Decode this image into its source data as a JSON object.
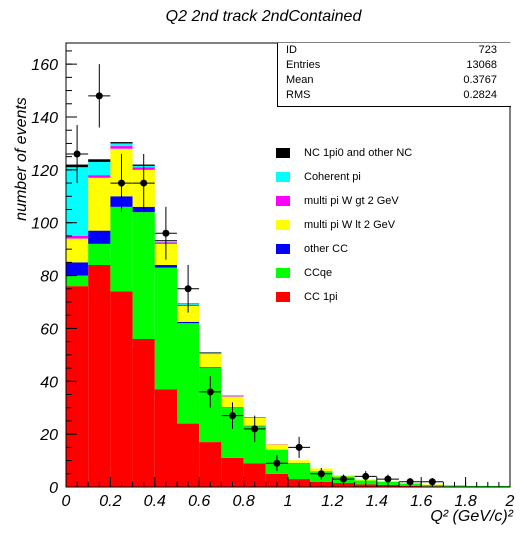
{
  "title": "Q2 2nd track 2ndContained",
  "ylabel": "number of events",
  "xlabel": "Q² (GeV/c)²",
  "stats": [
    {
      "label": "ID",
      "value": "723"
    },
    {
      "label": "Entries",
      "value": "13068"
    },
    {
      "label": "Mean",
      "value": "0.3767"
    },
    {
      "label": "RMS",
      "value": "0.2824"
    }
  ],
  "legend": [
    {
      "label": "NC 1pi0 and other NC",
      "color": "#000000"
    },
    {
      "label": "Coherent pi",
      "color": "#00ffff"
    },
    {
      "label": "multi pi W gt 2 GeV",
      "color": "#ff00ff"
    },
    {
      "label": "multi pi W lt 2 GeV",
      "color": "#ffff00"
    },
    {
      "label": "other CC",
      "color": "#0000ff"
    },
    {
      "label": "CCqe",
      "color": "#00ff00"
    },
    {
      "label": "CC 1pi",
      "color": "#ff0000"
    }
  ],
  "chart_data": {
    "type": "bar",
    "stacked": true,
    "bin_edges": [
      0,
      0.1,
      0.2,
      0.3,
      0.4,
      0.5,
      0.6,
      0.7,
      0.8,
      0.9,
      1.0,
      1.1,
      1.2,
      1.3,
      1.4,
      1.5,
      1.6,
      1.7,
      1.8,
      1.9,
      2.0
    ],
    "xlim": [
      0,
      2
    ],
    "ylim": [
      0,
      168
    ],
    "xticks": [
      "0",
      "0.2",
      "0.4",
      "0.6",
      "0.8",
      "1",
      "1.2",
      "1.4",
      "1.6",
      "1.8",
      "2"
    ],
    "yticks": [
      "0",
      "20",
      "40",
      "60",
      "80",
      "100",
      "120",
      "140",
      "160"
    ],
    "series": [
      {
        "name": "CC 1pi",
        "color": "#ff0000",
        "values": [
          76,
          84,
          74,
          56,
          37,
          24,
          17,
          11,
          9,
          5,
          3,
          2,
          1.5,
          1,
          0.8,
          0.5,
          0.3,
          0.2,
          0.1,
          0.1
        ]
      },
      {
        "name": "CCqe",
        "color": "#00ff00",
        "values": [
          4,
          8,
          32,
          48,
          46,
          38,
          28,
          19,
          14,
          9,
          6,
          4,
          2.5,
          1.5,
          1.2,
          0.8,
          0.5,
          0.4,
          0.3,
          0.3
        ]
      },
      {
        "name": "other CC",
        "color": "#0000ff",
        "values": [
          5,
          5,
          4,
          2,
          1,
          0.5,
          0.3,
          0.2,
          0.2,
          0.1,
          0.1,
          0,
          0,
          0,
          0,
          0,
          0,
          0,
          0,
          0
        ]
      },
      {
        "name": "multi pi W lt 2 GeV",
        "color": "#ffff00",
        "values": [
          9,
          20,
          18,
          14,
          8,
          6,
          5,
          4,
          3,
          2,
          1,
          1,
          0.5,
          0.4,
          0.3,
          0.2,
          0.2,
          0.1,
          0.1,
          0.1
        ]
      },
      {
        "name": "multi pi W gt 2 GeV",
        "color": "#ff00ff",
        "values": [
          1,
          1,
          1,
          1,
          0.6,
          0.4,
          0.3,
          0.2,
          0.1,
          0.1,
          0,
          0,
          0,
          0,
          0,
          0,
          0,
          0,
          0,
          0
        ]
      },
      {
        "name": "Coherent pi",
        "color": "#00ffff",
        "values": [
          26,
          5,
          1,
          0.5,
          0.5,
          0.3,
          0.2,
          0.1,
          0,
          0,
          0,
          0,
          0,
          0,
          0,
          0,
          0,
          0,
          0,
          0
        ]
      },
      {
        "name": "NC 1pi0 and other NC",
        "color": "#000000",
        "values": [
          1,
          1,
          0.5,
          0.5,
          0.3,
          0.2,
          0.2,
          0.1,
          0.1,
          0,
          0,
          0,
          0,
          0,
          0,
          0,
          0,
          0,
          0,
          0
        ]
      }
    ],
    "data_points": {
      "x": [
        0.05,
        0.15,
        0.25,
        0.35,
        0.45,
        0.55,
        0.65,
        0.75,
        0.85,
        0.95,
        1.05,
        1.15,
        1.25,
        1.35,
        1.45,
        1.55,
        1.65
      ],
      "y": [
        126,
        148,
        115,
        115,
        96,
        75,
        36,
        27,
        22,
        9,
        15,
        5,
        3,
        4,
        3,
        2,
        2
      ],
      "yerr": [
        11,
        12,
        11,
        11,
        10,
        9,
        6,
        5,
        5,
        3,
        4,
        2.2,
        1.7,
        2,
        1.7,
        1.4,
        1.4
      ]
    }
  }
}
